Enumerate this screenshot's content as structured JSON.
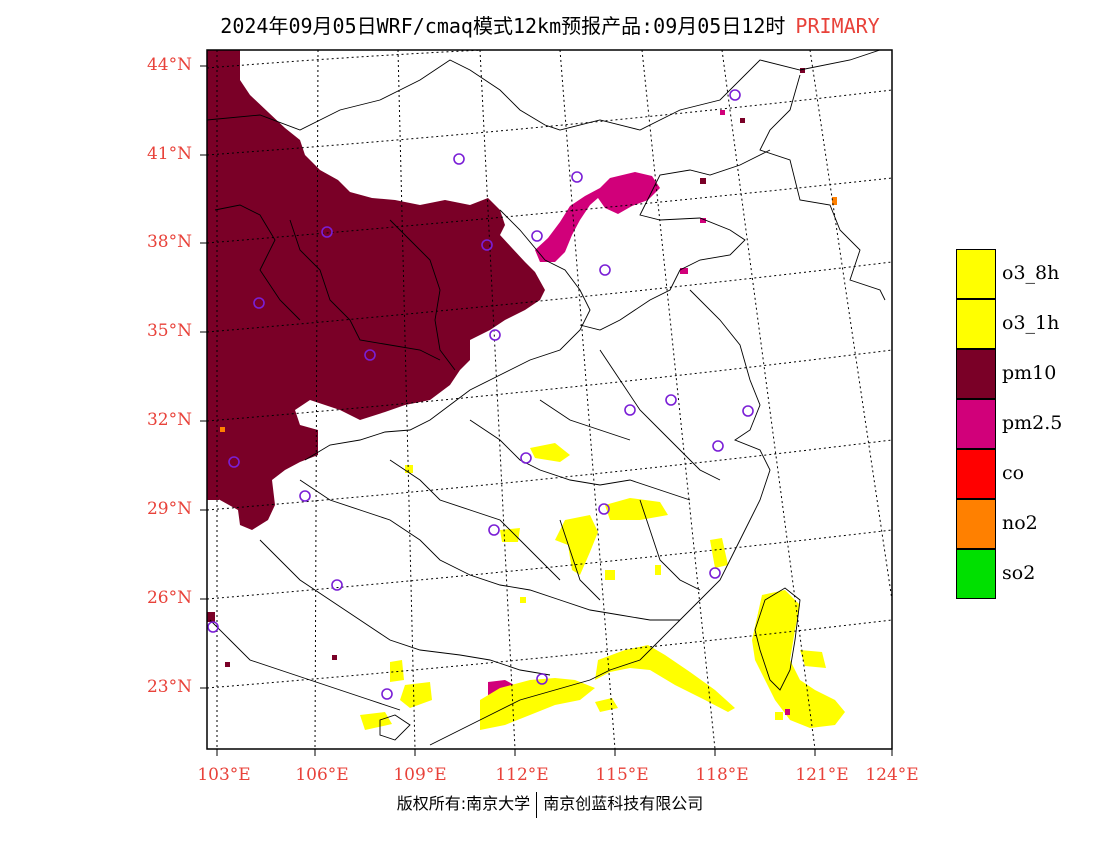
{
  "title": {
    "text": "2024年09月05日WRF/cmaq模式12km预报产品:09月05日12时",
    "tag": "PRIMARY"
  },
  "latitudes": [
    "44°N",
    "41°N",
    "38°N",
    "35°N",
    "32°N",
    "29°N",
    "26°N",
    "23°N"
  ],
  "longitudes": [
    "103°E",
    "106°E",
    "109°E",
    "112°E",
    "115°E",
    "118°E",
    "121°E",
    "124°E"
  ],
  "legend": [
    {
      "label": "o3_8h",
      "color": "#ffff00"
    },
    {
      "label": "o3_1h",
      "color": "#ffff00"
    },
    {
      "label": "pm10",
      "color": "#7a0027"
    },
    {
      "label": "pm2.5",
      "color": "#d1007a"
    },
    {
      "label": "co",
      "color": "#ff0000"
    },
    {
      "label": "no2",
      "color": "#ff8000"
    },
    {
      "label": "so2",
      "color": "#00e000"
    }
  ],
  "copyright": {
    "left": "版权所有:南京大学",
    "right": "南京创蓝科技有限公司"
  }
}
